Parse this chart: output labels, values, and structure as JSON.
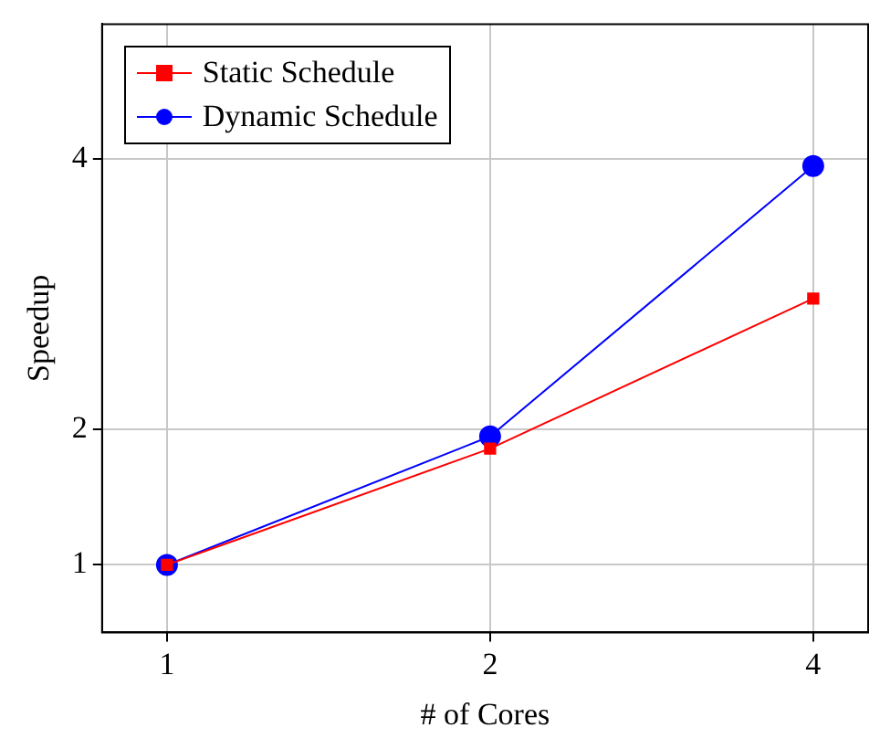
{
  "chart_data": {
    "type": "line",
    "xlabel": "# of Cores",
    "ylabel": "Speedup",
    "x": [
      1,
      2,
      4
    ],
    "log": "x",
    "xlim": [
      0.87,
      4.5
    ],
    "xticks": [
      1,
      2,
      4
    ],
    "ylim": [
      0.5,
      5
    ],
    "yticks": [
      1,
      2,
      4
    ],
    "grid": true,
    "legend": "top left",
    "line_style": "solid",
    "series": [
      {
        "name": "Static Schedule",
        "color": "#ff0000",
        "marker": "square",
        "values": [
          1,
          1.86,
          2.97
        ]
      },
      {
        "name": "Dynamic Schedule",
        "color": "#0000ff",
        "marker": "circle",
        "values": [
          1,
          1.95,
          3.95
        ]
      }
    ]
  }
}
